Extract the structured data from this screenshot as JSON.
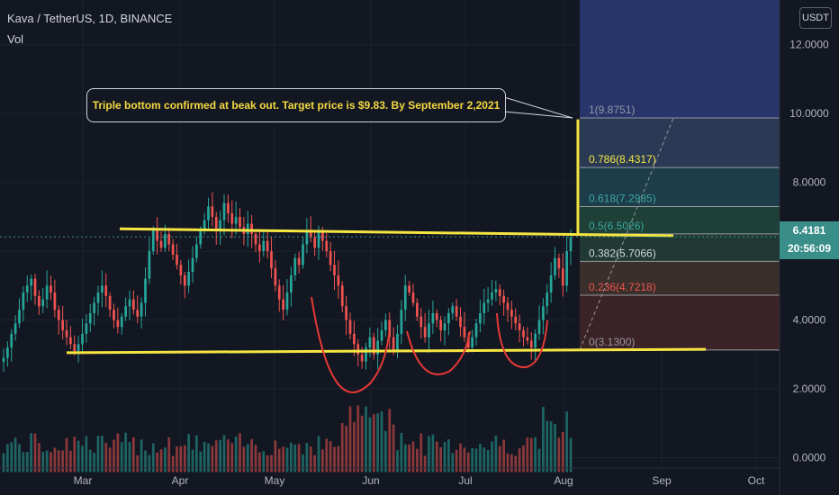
{
  "header": {
    "symbol": "Kava / TetherUS, 1D, BINANCE",
    "volume_label": "Vol",
    "currency_button": "USDT"
  },
  "annotation": {
    "text": "Triple bottom confirmed at beak out. Target price is $9.83. By September 2,2021"
  },
  "price_tag": {
    "price": "6.4181",
    "countdown": "20:56:09",
    "value": 6.4181
  },
  "colors": {
    "up": "#26a69a",
    "down": "#ef5350",
    "yellow": "#f5e642",
    "fib_top": "#27356b",
    "fib_0786": "#2a3a55",
    "fib_0618": "#1e3d4a",
    "fib_05": "#1e4036",
    "fib_0382": "#203a33",
    "fib_0236": "#3a2f2a",
    "fib_0": "#3b2226"
  },
  "chart_data": {
    "type": "candlestick",
    "title": "",
    "x_labels": [
      "Mar",
      "Apr",
      "May",
      "Jun",
      "Jul",
      "Aug",
      "Sep",
      "Oct"
    ],
    "y_ticks": [
      0,
      2,
      4,
      6,
      8,
      10,
      12
    ],
    "y_tick_labels": [
      "0.0000",
      "2.0000",
      "4.0000",
      "",
      "8.0000",
      "10.0000",
      "12.0000"
    ],
    "ylim": [
      -0.3,
      13.3
    ],
    "fib_levels": [
      {
        "label": "1(9.8751)",
        "value": 9.8751
      },
      {
        "label": "0.786(8.4317)",
        "value": 8.4317
      },
      {
        "label": "0.618(7.2985)",
        "value": 7.2985
      },
      {
        "label": "0.5(6.5026)",
        "value": 6.5026
      },
      {
        "label": "0.382(5.7066)",
        "value": 5.7066
      },
      {
        "label": "0.236(4.7218)",
        "value": 4.7218
      },
      {
        "label": "0(3.1300)",
        "value": 3.13
      }
    ],
    "resistance_line": [
      6.65,
      6.45
    ],
    "support_line": [
      3.05,
      3.15
    ],
    "target_price": 9.83,
    "closes": [
      2.9,
      3.2,
      3.6,
      3.9,
      4.3,
      4.8,
      5.0,
      5.2,
      4.7,
      4.4,
      4.6,
      5.0,
      4.8,
      4.3,
      4.0,
      3.7,
      3.5,
      3.3,
      3.1,
      3.3,
      3.6,
      3.9,
      4.2,
      4.5,
      4.8,
      5.0,
      4.7,
      4.3,
      4.0,
      3.8,
      4.1,
      4.4,
      4.6,
      4.3,
      4.1,
      4.5,
      5.2,
      6.0,
      6.6,
      6.3,
      6.1,
      6.5,
      6.2,
      5.9,
      5.6,
      5.3,
      5.0,
      5.4,
      5.8,
      6.2,
      6.6,
      6.9,
      7.3,
      7.0,
      6.6,
      6.9,
      7.4,
      7.1,
      6.8,
      7.0,
      6.7,
      6.5,
      6.8,
      6.5,
      6.2,
      6.0,
      6.3,
      6.0,
      5.5,
      5.0,
      4.6,
      4.3,
      4.8,
      5.3,
      5.8,
      5.6,
      6.2,
      6.6,
      6.4,
      6.1,
      6.6,
      6.3,
      6.0,
      5.6,
      5.3,
      5.0,
      4.4,
      4.0,
      3.6,
      3.3,
      3.0,
      2.8,
      3.2,
      3.5,
      3.0,
      3.4,
      3.7,
      4.0,
      3.5,
      3.1,
      3.6,
      4.3,
      5.0,
      4.8,
      4.5,
      4.1,
      3.8,
      3.5,
      3.9,
      4.2,
      4.0,
      3.7,
      3.9,
      4.2,
      4.4,
      4.1,
      3.8,
      3.5,
      3.2,
      3.5,
      3.9,
      4.2,
      4.5,
      4.6,
      4.8,
      4.9,
      4.7,
      4.5,
      4.3,
      4.1,
      3.9,
      3.7,
      3.5,
      3.4,
      3.2,
      3.6,
      4.0,
      4.4,
      4.8,
      5.3,
      5.8,
      5.5,
      5.0,
      6.0,
      6.4
    ]
  }
}
